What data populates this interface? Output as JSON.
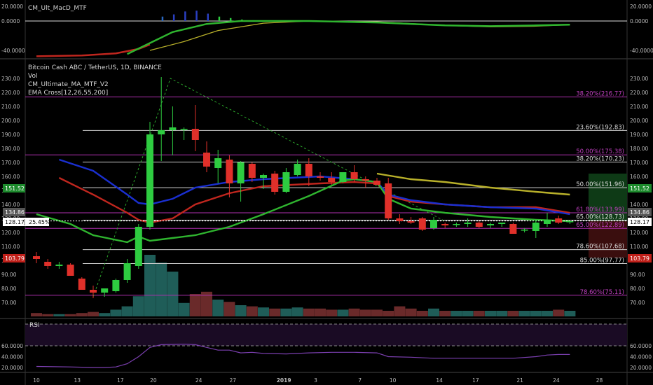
{
  "indicators": {
    "macd_title": "CM_Ult_MacD_MTF",
    "main_title": "Bitcoin Cash ABC / TetherUS, 1D, BINANCE",
    "vol": "Vol",
    "ma": "CM_Ultimate_MA_MTF_V2",
    "ema": "EMA Cross[12,26,55,200]",
    "rsi_title": "RSI"
  },
  "macd_axis": [
    "20.0000",
    "0.0000",
    "-40.0000"
  ],
  "macd_axis_values": [
    20,
    0,
    -40
  ],
  "price_axis": [
    "230.00",
    "220.00",
    "210.00",
    "200.00",
    "190.00",
    "180.00",
    "170.00",
    "160.00",
    "150.00",
    "140.00",
    "130.00",
    "120.00",
    "110.00",
    "100.00",
    "90.00",
    "80.00",
    "70.00"
  ],
  "rsi_axis": [
    "60.0000",
    "40.0000",
    "20.0000"
  ],
  "rsi_axis_values": [
    60,
    40,
    20
  ],
  "badges": {
    "price_current": "128.17",
    "pct_change": "25.45%",
    "left_151": "151.52",
    "left_134": "134.86",
    "left_103": "103.79",
    "right_151": "151.52",
    "right_134": "134.86",
    "right_128": "128.17",
    "right_103": "103.79"
  },
  "colors": {
    "up": "#2ecc40",
    "down": "#e0302a",
    "fib_purple": "#b02fb0",
    "fib_white": "#cfcfcf",
    "ema_blue": "#1a2fd0",
    "ema_red": "#c0261e",
    "ema_green": "#2fb52f",
    "ema_yellow": "#b8b02a",
    "rsi": "#7b3fb0",
    "badge_green": "#1c8a2c",
    "badge_red": "#c0201a",
    "badge_gray": "#555555"
  },
  "x_axis": [
    "10",
    "13",
    "17",
    "20",
    "24",
    "27",
    "2019",
    "3",
    "7",
    "10",
    "14",
    "17",
    "21",
    "24",
    "28"
  ],
  "chart_data": {
    "type": "candlestick",
    "title": "Bitcoin Cash ABC / TetherUS, 1D, BINANCE",
    "ylim": [
      65,
      235
    ],
    "candles": [
      {
        "o": 103,
        "h": 106,
        "l": 98,
        "c": 101
      },
      {
        "o": 99,
        "h": 101,
        "l": 94,
        "c": 96
      },
      {
        "o": 96,
        "h": 99,
        "l": 94,
        "c": 97
      },
      {
        "o": 97,
        "h": 98,
        "l": 89,
        "c": 89
      },
      {
        "o": 87,
        "h": 88,
        "l": 79,
        "c": 79
      },
      {
        "o": 79,
        "h": 82,
        "l": 73,
        "c": 77
      },
      {
        "o": 77,
        "h": 79,
        "l": 74,
        "c": 80
      },
      {
        "o": 78,
        "h": 87,
        "l": 77,
        "c": 86
      },
      {
        "o": 86,
        "h": 101,
        "l": 84,
        "c": 98
      },
      {
        "o": 96,
        "h": 126,
        "l": 94,
        "c": 124
      },
      {
        "o": 124,
        "h": 199,
        "l": 122,
        "c": 190
      },
      {
        "o": 190,
        "h": 231,
        "l": 171,
        "c": 193
      },
      {
        "o": 193,
        "h": 210,
        "l": 175,
        "c": 195
      },
      {
        "o": 194,
        "h": 195,
        "l": 186,
        "c": 194
      },
      {
        "o": 194,
        "h": 211,
        "l": 178,
        "c": 186
      },
      {
        "o": 177,
        "h": 185,
        "l": 163,
        "c": 167
      },
      {
        "o": 166,
        "h": 179,
        "l": 155,
        "c": 173
      },
      {
        "o": 172,
        "h": 175,
        "l": 145,
        "c": 155
      },
      {
        "o": 155,
        "h": 171,
        "l": 142,
        "c": 170
      },
      {
        "o": 169,
        "h": 170,
        "l": 156,
        "c": 159
      },
      {
        "o": 159,
        "h": 162,
        "l": 151,
        "c": 161
      },
      {
        "o": 162,
        "h": 164,
        "l": 147,
        "c": 149
      },
      {
        "o": 149,
        "h": 166,
        "l": 148,
        "c": 163
      },
      {
        "o": 161,
        "h": 172,
        "l": 160,
        "c": 169
      },
      {
        "o": 169,
        "h": 173,
        "l": 153,
        "c": 160
      },
      {
        "o": 160,
        "h": 163,
        "l": 157,
        "c": 159
      },
      {
        "o": 159,
        "h": 163,
        "l": 154,
        "c": 156
      },
      {
        "o": 156,
        "h": 163,
        "l": 155,
        "c": 163
      },
      {
        "o": 163,
        "h": 168,
        "l": 156,
        "c": 158
      },
      {
        "o": 158,
        "h": 160,
        "l": 152,
        "c": 157
      },
      {
        "o": 157,
        "h": 159,
        "l": 154,
        "c": 154
      },
      {
        "o": 155,
        "h": 159,
        "l": 129,
        "c": 130
      },
      {
        "o": 130,
        "h": 133,
        "l": 126,
        "c": 128
      },
      {
        "o": 128,
        "h": 131,
        "l": 126,
        "c": 127
      },
      {
        "o": 130,
        "h": 131,
        "l": 121,
        "c": 122
      },
      {
        "o": 123,
        "h": 131,
        "l": 122,
        "c": 129
      },
      {
        "o": 126,
        "h": 127,
        "l": 123,
        "c": 125
      },
      {
        "o": 126,
        "h": 127,
        "l": 124,
        "c": 126
      },
      {
        "o": 126,
        "h": 130,
        "l": 124,
        "c": 127
      },
      {
        "o": 127,
        "h": 128,
        "l": 123,
        "c": 124
      },
      {
        "o": 125,
        "h": 127,
        "l": 123,
        "c": 126
      },
      {
        "o": 126,
        "h": 127,
        "l": 124,
        "c": 127
      },
      {
        "o": 126,
        "h": 127,
        "l": 119,
        "c": 119
      },
      {
        "o": 122,
        "h": 123,
        "l": 120,
        "c": 122
      },
      {
        "o": 121,
        "h": 129,
        "l": 116,
        "c": 127
      },
      {
        "o": 126,
        "h": 134,
        "l": 124,
        "c": 129
      },
      {
        "o": 130,
        "h": 132,
        "l": 126,
        "c": 127
      },
      {
        "o": 128,
        "h": 129,
        "l": 126,
        "c": 128
      }
    ],
    "volume": [
      3,
      2,
      2,
      2,
      3,
      4,
      3,
      6,
      9,
      18,
      55,
      48,
      40,
      12,
      20,
      22,
      15,
      13,
      10,
      9,
      8,
      7,
      7,
      8,
      7,
      7,
      6,
      6,
      7,
      6,
      6,
      5,
      9,
      7,
      5,
      7,
      5,
      5,
      5,
      5,
      5,
      5,
      5,
      5,
      5,
      5,
      6,
      5
    ],
    "ema_blue": [
      [
        2,
        172
      ],
      [
        5,
        164
      ],
      [
        8,
        147
      ],
      [
        9,
        141
      ],
      [
        10,
        140
      ],
      [
        12,
        144
      ],
      [
        14,
        152
      ],
      [
        17,
        156
      ],
      [
        20,
        158
      ],
      [
        25,
        160
      ],
      [
        28,
        158
      ],
      [
        30,
        156
      ],
      [
        31,
        147
      ],
      [
        33,
        143
      ],
      [
        36,
        140
      ],
      [
        40,
        138
      ],
      [
        44,
        137
      ],
      [
        47,
        133
      ]
    ],
    "ema_red": [
      [
        2,
        159
      ],
      [
        5,
        147
      ],
      [
        8,
        134
      ],
      [
        9,
        129
      ],
      [
        10,
        127
      ],
      [
        12,
        130
      ],
      [
        14,
        140
      ],
      [
        17,
        148
      ],
      [
        20,
        153
      ],
      [
        25,
        155
      ],
      [
        28,
        156
      ],
      [
        30,
        155
      ],
      [
        31,
        146
      ],
      [
        33,
        142
      ],
      [
        36,
        140
      ],
      [
        40,
        138
      ],
      [
        44,
        138
      ],
      [
        47,
        134
      ]
    ],
    "ema_green": [
      [
        0,
        133
      ],
      [
        3,
        126
      ],
      [
        5,
        118
      ],
      [
        8,
        113
      ],
      [
        9,
        117
      ],
      [
        10,
        114
      ],
      [
        12,
        116
      ],
      [
        14,
        118
      ],
      [
        17,
        124
      ],
      [
        20,
        133
      ],
      [
        24,
        146
      ],
      [
        27,
        157
      ],
      [
        28,
        158
      ],
      [
        30,
        156
      ],
      [
        31,
        144
      ],
      [
        33,
        137
      ],
      [
        36,
        134
      ],
      [
        40,
        131
      ],
      [
        44,
        129
      ],
      [
        47,
        128
      ]
    ],
    "ema_yellow": [
      [
        30,
        162
      ],
      [
        33,
        158
      ],
      [
        36,
        156
      ],
      [
        40,
        152
      ],
      [
        44,
        149
      ],
      [
        47,
        147
      ]
    ],
    "fib": [
      {
        "label": "38.20%(216.77)",
        "price": 216.77,
        "color": "#b02fb0"
      },
      {
        "label": "23.60%(192.83)",
        "price": 192.83,
        "color": "#cfcfcf"
      },
      {
        "label": "50.00%(175.38)",
        "price": 175.38,
        "color": "#b02fb0"
      },
      {
        "label": "38.20%(170.23)",
        "price": 170.23,
        "color": "#cfcfcf"
      },
      {
        "label": "50.00%(151.96)",
        "price": 151.96,
        "color": "#cfcfcf"
      },
      {
        "label": "61.80%(133.99)",
        "price": 133.99,
        "color": "#b02fb0"
      },
      {
        "label": "65.00%(128.73)",
        "price": 128.73,
        "color": "#cfcfcf"
      },
      {
        "label": "65.00%(122.89)",
        "price": 122.89,
        "color": "#b02fb0"
      },
      {
        "label": "78.60%(107.68)",
        "price": 107.68,
        "color": "#cfcfcf"
      },
      {
        "label": "85.00%(97.77)",
        "price": 97.77,
        "color": "#cfcfcf"
      },
      {
        "label": "78.60%(75.11)",
        "price": 75.11,
        "color": "#b02fb0"
      }
    ],
    "macd_green": [
      [
        8,
        -45
      ],
      [
        10,
        -30
      ],
      [
        12,
        -15
      ],
      [
        15,
        -4
      ],
      [
        18,
        0
      ],
      [
        24,
        0
      ],
      [
        30,
        -2
      ],
      [
        36,
        -6
      ],
      [
        40,
        -7
      ],
      [
        44,
        -6
      ],
      [
        47,
        -5
      ]
    ],
    "macd_red": [
      [
        0,
        -48
      ],
      [
        4,
        -47
      ],
      [
        7,
        -44
      ],
      [
        9,
        -38
      ],
      [
        10,
        -32
      ]
    ],
    "macd_yellow": [
      [
        10,
        -40
      ],
      [
        13,
        -28
      ],
      [
        16,
        -13
      ],
      [
        20,
        -3
      ],
      [
        24,
        0
      ],
      [
        30,
        -1
      ],
      [
        36,
        -6
      ],
      [
        40,
        -8
      ],
      [
        44,
        -7
      ],
      [
        47,
        -5
      ]
    ],
    "macd_hist": [
      0,
      0,
      0,
      0,
      0,
      0,
      0,
      0,
      0,
      0,
      0,
      6,
      9,
      13,
      14,
      10,
      6,
      4,
      2,
      1,
      0,
      0,
      0,
      0,
      0,
      0,
      0,
      0,
      0,
      0,
      0,
      0,
      0,
      0,
      0,
      0,
      0,
      0,
      0,
      0,
      0,
      0,
      0,
      0,
      0,
      0,
      0,
      0
    ],
    "rsi": [
      [
        0,
        22
      ],
      [
        3,
        21
      ],
      [
        5,
        20
      ],
      [
        6,
        20
      ],
      [
        7,
        21
      ],
      [
        8,
        27
      ],
      [
        9,
        40
      ],
      [
        10,
        57
      ],
      [
        11,
        62
      ],
      [
        13,
        63
      ],
      [
        14,
        62
      ],
      [
        15,
        57
      ],
      [
        16,
        52
      ],
      [
        17,
        52
      ],
      [
        18,
        47
      ],
      [
        19,
        48
      ],
      [
        20,
        46
      ],
      [
        22,
        45
      ],
      [
        24,
        47
      ],
      [
        26,
        48
      ],
      [
        28,
        48
      ],
      [
        30,
        47
      ],
      [
        31,
        40
      ],
      [
        33,
        39
      ],
      [
        35,
        37
      ],
      [
        38,
        37
      ],
      [
        42,
        37
      ],
      [
        44,
        40
      ],
      [
        45,
        43
      ],
      [
        46,
        44
      ],
      [
        47,
        44
      ]
    ]
  }
}
